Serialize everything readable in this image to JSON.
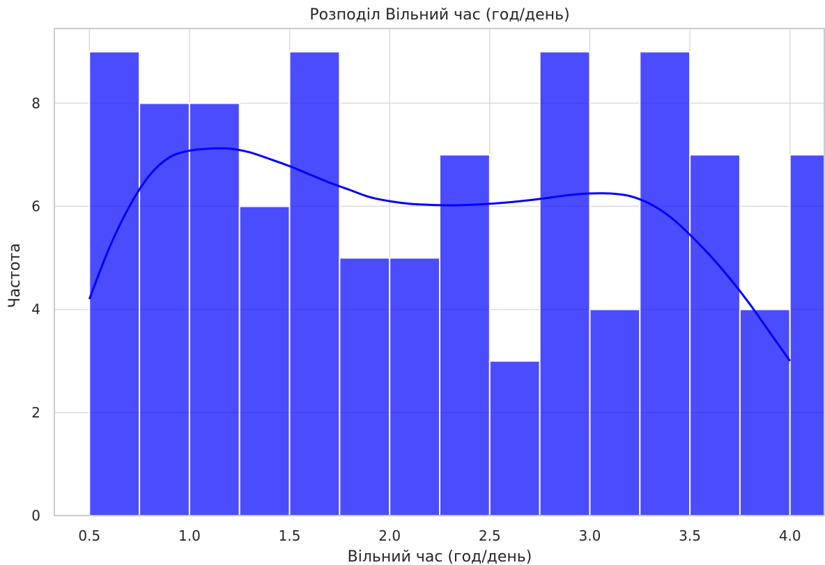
{
  "chart_data": {
    "type": "bar",
    "subtype": "histogram",
    "title": "Розподіл Вільний час (год/день)",
    "xlabel": "Вільний час (год/день)",
    "ylabel": "Частота",
    "xlim": [
      0.325,
      4.175
    ],
    "ylim": [
      0,
      9.45
    ],
    "xticks": [
      0.5,
      1.0,
      1.5,
      2.0,
      2.5,
      3.0,
      3.5,
      4.0
    ],
    "xtick_labels": [
      "0.5",
      "1.0",
      "1.5",
      "2.0",
      "2.5",
      "3.0",
      "3.5",
      "4.0"
    ],
    "yticks": [
      0,
      2,
      4,
      6,
      8
    ],
    "ytick_labels": [
      "0",
      "2",
      "4",
      "6",
      "8"
    ],
    "grid": true,
    "bar_color": "#0000ff",
    "bar_opacity": 0.7,
    "kde_color": "#0000ff",
    "bins": [
      {
        "x0": 0.5,
        "x1": 0.75,
        "count": 9
      },
      {
        "x0": 0.75,
        "x1": 1.0,
        "count": 8
      },
      {
        "x0": 1.0,
        "x1": 1.25,
        "count": 8
      },
      {
        "x0": 1.25,
        "x1": 1.5,
        "count": 6
      },
      {
        "x0": 1.5,
        "x1": 1.75,
        "count": 9
      },
      {
        "x0": 1.75,
        "x1": 2.0,
        "count": 5
      },
      {
        "x0": 2.0,
        "x1": 2.25,
        "count": 5
      },
      {
        "x0": 2.25,
        "x1": 2.5,
        "count": 7
      },
      {
        "x0": 2.5,
        "x1": 2.75,
        "count": 3
      },
      {
        "x0": 2.75,
        "x1": 3.0,
        "count": 9
      },
      {
        "x0": 3.0,
        "x1": 3.25,
        "count": 4
      },
      {
        "x0": 3.25,
        "x1": 3.5,
        "count": 9
      },
      {
        "x0": 3.5,
        "x1": 3.75,
        "count": 7
      },
      {
        "x0": 3.75,
        "x1": 4.0,
        "count": 4
      },
      {
        "x0": 4.0,
        "x1": 4.25,
        "count": 7
      }
    ],
    "kde": {
      "x": [
        0.5,
        0.6,
        0.7,
        0.8,
        0.9,
        1.0,
        1.1,
        1.2,
        1.3,
        1.4,
        1.5,
        1.6,
        1.7,
        1.8,
        1.9,
        2.0,
        2.1,
        2.2,
        2.3,
        2.4,
        2.5,
        2.6,
        2.7,
        2.8,
        2.9,
        3.0,
        3.1,
        3.2,
        3.3,
        3.4,
        3.5,
        3.6,
        3.7,
        3.8,
        3.9,
        4.0
      ],
      "y": [
        4.2,
        5.2,
        6.0,
        6.6,
        6.95,
        7.08,
        7.12,
        7.12,
        7.05,
        6.92,
        6.78,
        6.62,
        6.46,
        6.32,
        6.18,
        6.1,
        6.05,
        6.03,
        6.02,
        6.03,
        6.05,
        6.08,
        6.12,
        6.17,
        6.22,
        6.25,
        6.25,
        6.2,
        6.05,
        5.8,
        5.45,
        5.05,
        4.6,
        4.1,
        3.55,
        3.0
      ]
    }
  }
}
